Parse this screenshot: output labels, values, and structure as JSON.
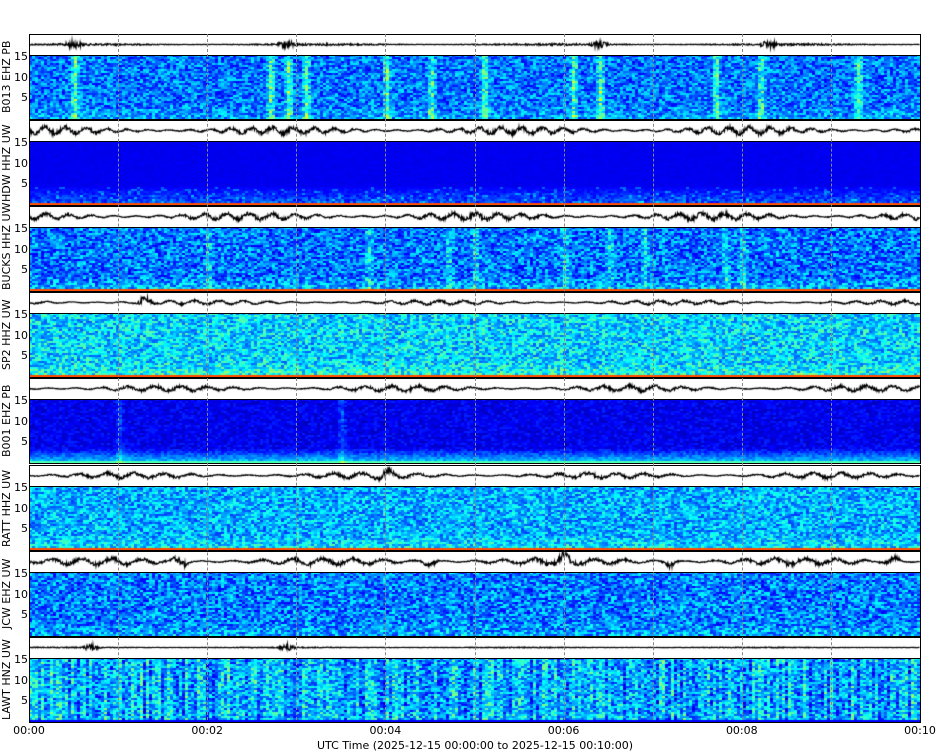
{
  "chart_data": {
    "type": "heatmap",
    "xlabel": "UTC Time (2025-12-15 00:00:00 to 2025-12-15 00:10:00)",
    "x_ticks": [
      "00:00",
      "00:02",
      "00:04",
      "00:06",
      "00:08",
      "00:10"
    ],
    "x_range_minutes": [
      0,
      10
    ],
    "grid_minutes": [
      1,
      2,
      3,
      4,
      5,
      6,
      7,
      8,
      9
    ],
    "y_ticks": [
      "5",
      "10",
      "15"
    ],
    "ylim": [
      0,
      15.5
    ],
    "colormap": "jet",
    "panels": [
      {
        "station": "B013 EHZ PB"
      },
      {
        "station": "HDW HHZ UW"
      },
      {
        "station": "BUCKS HHZ UW"
      },
      {
        "station": "SP2 HHZ UW"
      },
      {
        "station": "B001 EHZ PB"
      },
      {
        "station": "RATT HHZ UW"
      },
      {
        "station": "JCW EHZ UW"
      },
      {
        "station": "LAWT HNZ UW"
      }
    ]
  }
}
